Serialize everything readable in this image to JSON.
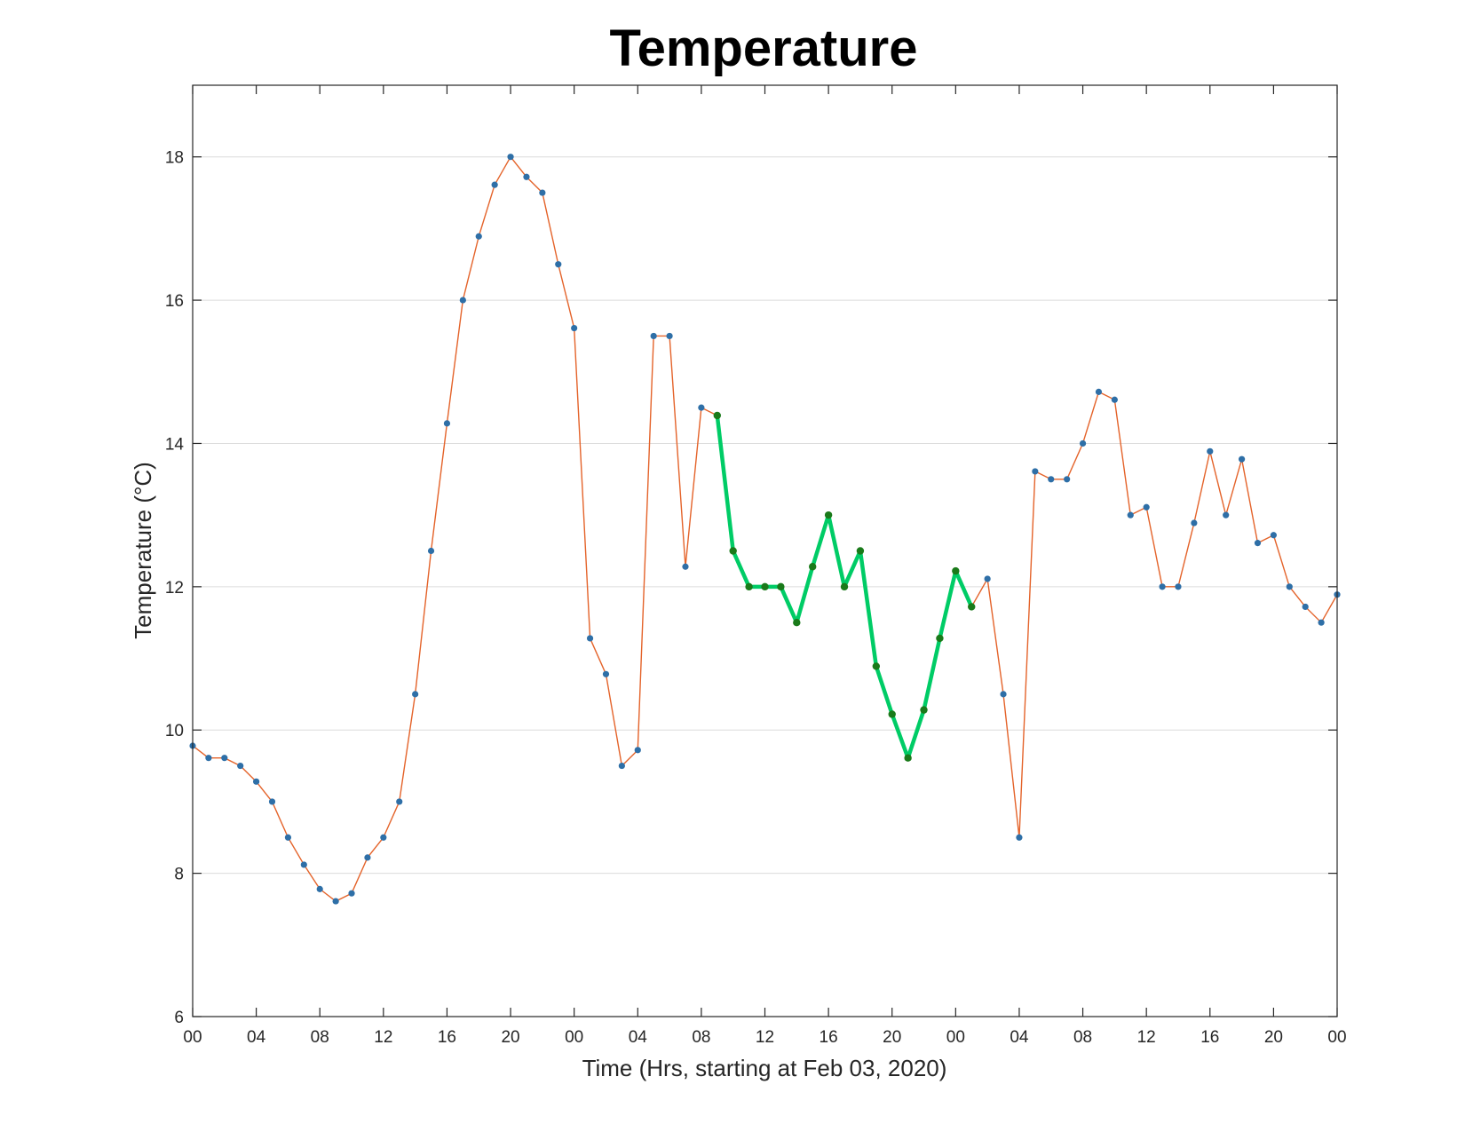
{
  "chart_data": {
    "type": "line",
    "title": "Temperature",
    "xlabel": "Time (Hrs, starting at Feb 03, 2020)",
    "ylabel": "Temperature (°C)",
    "xlim": [
      0,
      72
    ],
    "ylim": [
      6,
      19
    ],
    "y_ticks": [
      6,
      8,
      10,
      12,
      14,
      16,
      18
    ],
    "x_ticks": [
      {
        "x": 0,
        "label": "00"
      },
      {
        "x": 4,
        "label": "04"
      },
      {
        "x": 8,
        "label": "08"
      },
      {
        "x": 12,
        "label": "12"
      },
      {
        "x": 16,
        "label": "16"
      },
      {
        "x": 20,
        "label": "20"
      },
      {
        "x": 24,
        "label": "00"
      },
      {
        "x": 28,
        "label": "04"
      },
      {
        "x": 32,
        "label": "08"
      },
      {
        "x": 36,
        "label": "12"
      },
      {
        "x": 40,
        "label": "16"
      },
      {
        "x": 44,
        "label": "20"
      },
      {
        "x": 48,
        "label": "00"
      },
      {
        "x": 52,
        "label": "04"
      },
      {
        "x": 56,
        "label": "08"
      },
      {
        "x": 60,
        "label": "12"
      },
      {
        "x": 64,
        "label": "16"
      },
      {
        "x": 68,
        "label": "20"
      },
      {
        "x": 72,
        "label": "00"
      }
    ],
    "grid": "horizontal",
    "x_unit": "hours",
    "series": [
      {
        "color": "#e4632a",
        "marker_color": "#2e6fa7",
        "x": [
          0,
          1,
          2,
          3,
          4,
          5,
          6,
          7,
          8,
          9,
          10,
          11,
          12,
          13,
          14,
          15,
          16,
          17,
          18,
          19,
          20,
          21,
          22,
          23,
          24,
          25,
          26,
          27,
          28,
          29,
          30,
          31,
          32,
          33,
          34,
          35,
          36,
          37,
          38,
          39,
          40,
          41,
          42,
          43,
          44,
          45,
          46,
          47,
          48,
          49,
          50,
          51,
          52,
          53,
          54,
          55,
          56,
          57,
          58,
          59,
          60,
          61,
          62,
          63,
          64,
          65,
          66,
          67,
          68,
          69,
          70,
          71,
          72
        ],
        "values": [
          9.78,
          9.61,
          9.61,
          9.5,
          9.28,
          9.0,
          8.5,
          8.12,
          7.78,
          7.61,
          7.72,
          8.22,
          8.5,
          9.0,
          10.5,
          12.5,
          14.28,
          16.0,
          16.89,
          17.61,
          18.0,
          17.72,
          17.5,
          16.5,
          15.61,
          11.28,
          10.78,
          9.5,
          9.72,
          15.5,
          15.5,
          12.28,
          14.5,
          14.39,
          12.5,
          12.0,
          12.0,
          12.0,
          11.5,
          12.28,
          13.0,
          12.0,
          12.5,
          10.89,
          10.22,
          9.61,
          10.28,
          11.28,
          12.22,
          11.72,
          12.11,
          10.5,
          8.5,
          13.61,
          13.5,
          13.5,
          14.0,
          14.72,
          14.61,
          13.0,
          13.11,
          12.0,
          12.0,
          12.89,
          13.89,
          13.0,
          13.78,
          12.61,
          12.72,
          12.0,
          11.72,
          11.5,
          11.89
        ]
      },
      {
        "color": "#00cc66",
        "marker_color": "#1a7a1a",
        "x": [
          33,
          34,
          35,
          36,
          37,
          38,
          39,
          40,
          41,
          42,
          43,
          44,
          45,
          46,
          47,
          48,
          49
        ],
        "values": [
          14.39,
          12.5,
          12.0,
          12.0,
          12.0,
          11.5,
          12.28,
          13.0,
          12.0,
          12.5,
          10.89,
          10.22,
          9.61,
          10.28,
          11.28,
          12.22,
          11.72
        ]
      }
    ]
  }
}
